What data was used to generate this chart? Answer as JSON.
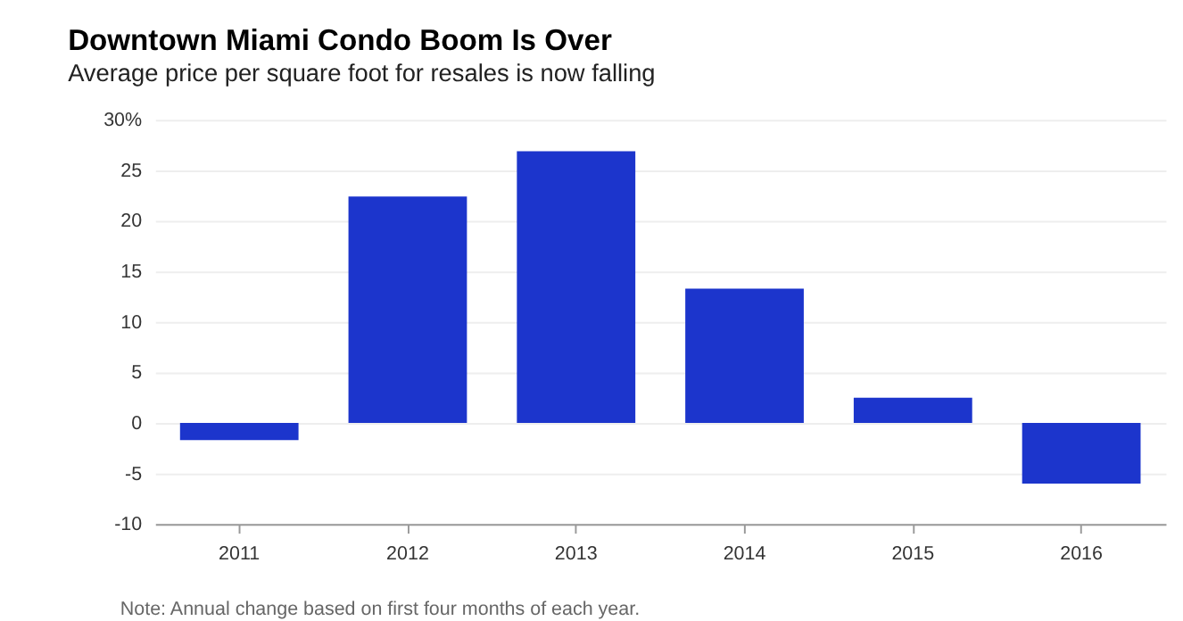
{
  "chart_data": {
    "type": "bar",
    "title": "Downtown Miami Condo Boom Is Over",
    "subtitle": "Average price per square foot for resales is now falling",
    "categories": [
      "2011",
      "2012",
      "2013",
      "2014",
      "2015",
      "2016"
    ],
    "values": [
      -1.7,
      22.4,
      26.9,
      13.3,
      2.5,
      -6.0
    ],
    "color": "#1c35cc",
    "ylim": [
      -10,
      30
    ],
    "yticks": [
      -10,
      -5,
      0,
      5,
      10,
      15,
      20,
      25,
      {
        "value": 30,
        "label": "30%"
      }
    ],
    "grid": "y",
    "annotations": [
      "Note: Annual change based on first four months of each year."
    ]
  }
}
